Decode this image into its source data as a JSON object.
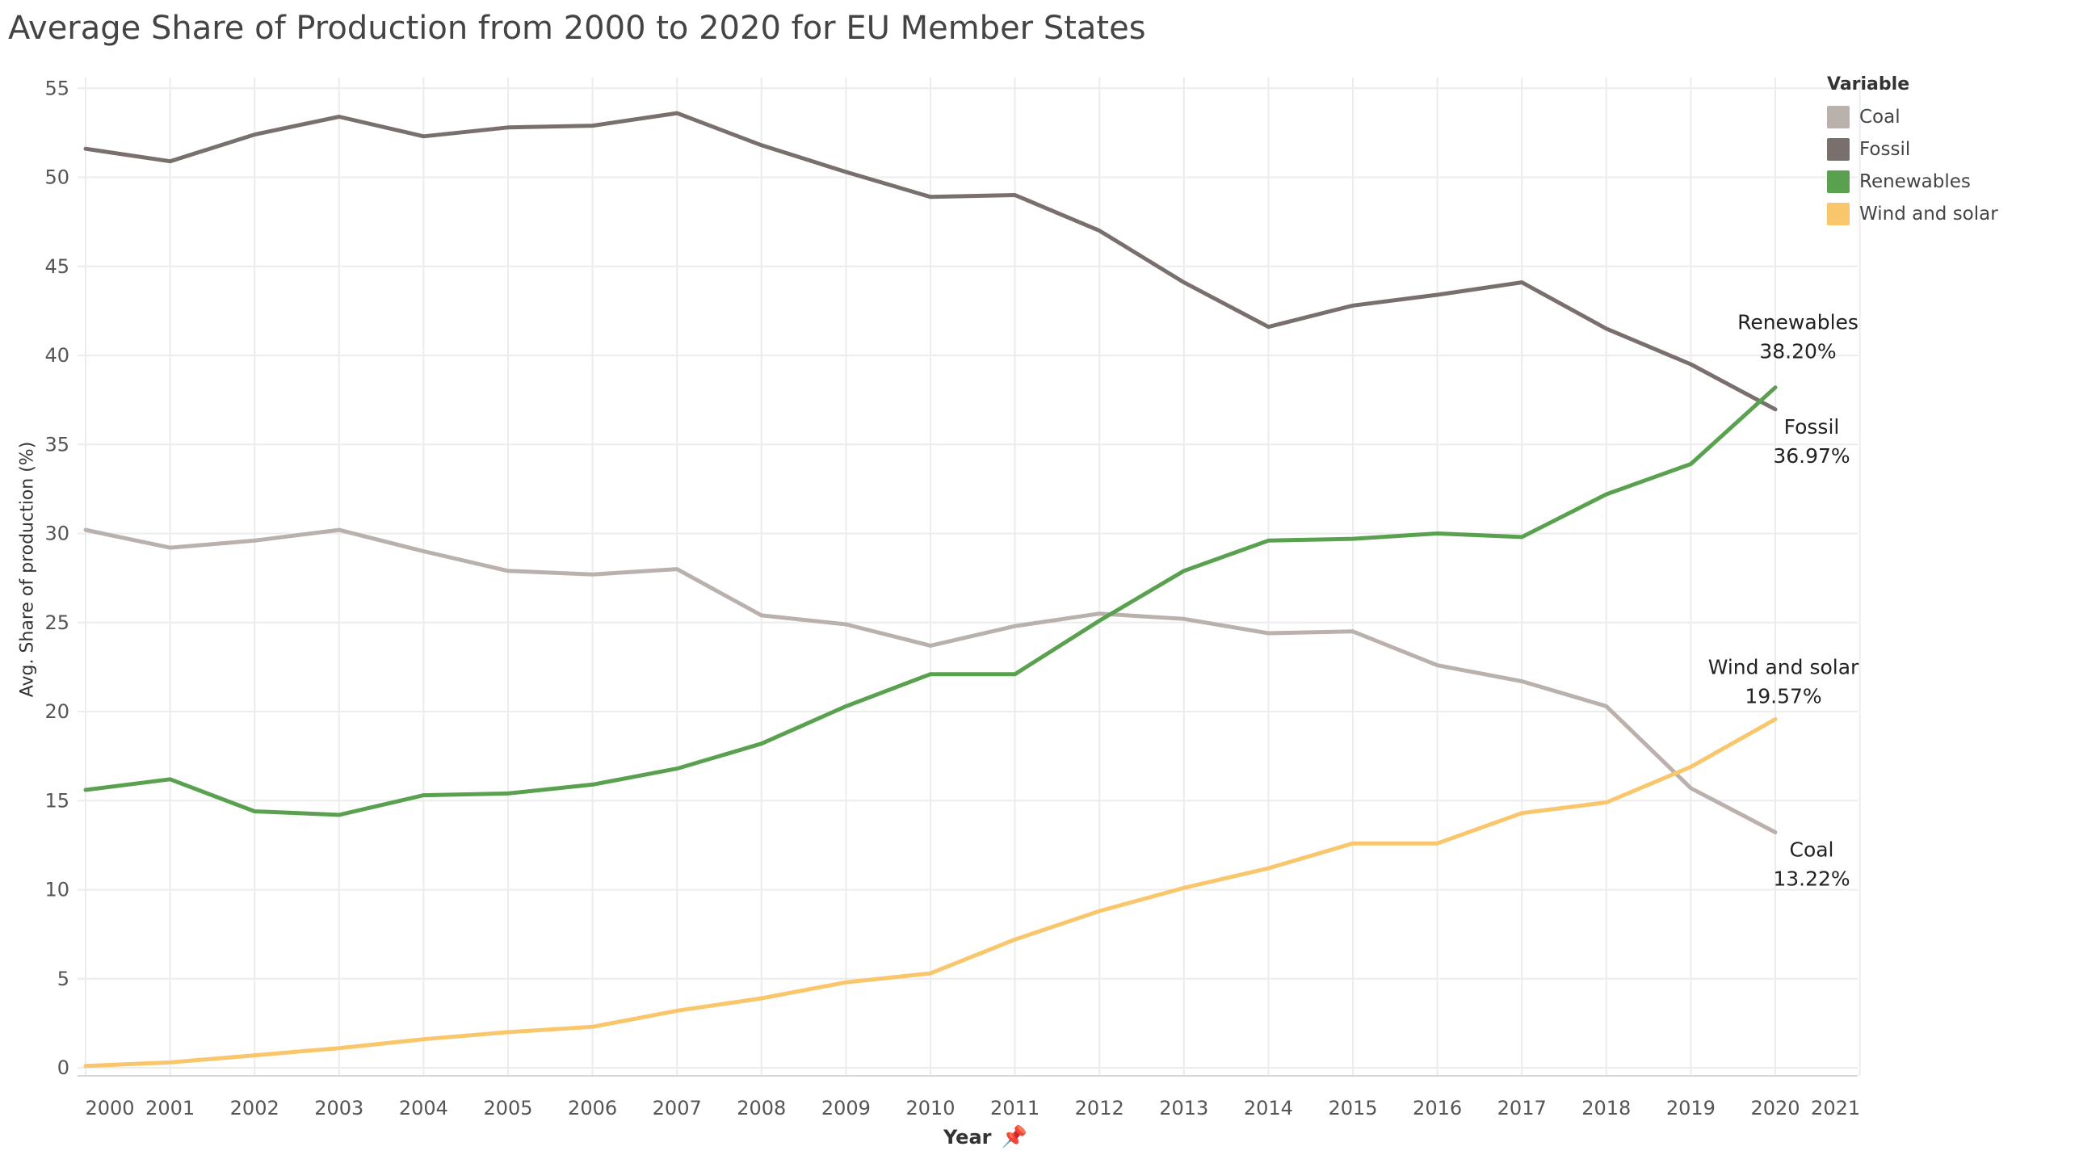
{
  "chart_data": {
    "type": "line",
    "title": "Average Share of Production from 2000 to 2020 for EU Member States",
    "xlabel": "Year",
    "ylabel": "Avg. Share of production (%)",
    "x_tick_labels": [
      "2000",
      "2001",
      "2002",
      "2003",
      "2004",
      "2005",
      "2006",
      "2007",
      "2008",
      "2009",
      "2010",
      "2011",
      "2012",
      "2013",
      "2014",
      "2015",
      "2016",
      "2017",
      "2018",
      "2019",
      "2020",
      "2021"
    ],
    "y_ticks": [
      0,
      5,
      10,
      15,
      20,
      25,
      30,
      35,
      40,
      45,
      50,
      55
    ],
    "xlim": [
      2000,
      2021
    ],
    "ylim": [
      0,
      55
    ],
    "grid": true,
    "legend": {
      "title": "Variable",
      "position": "top-right"
    },
    "x": [
      2000,
      2001,
      2002,
      2003,
      2004,
      2005,
      2006,
      2007,
      2008,
      2009,
      2010,
      2011,
      2012,
      2013,
      2014,
      2015,
      2016,
      2017,
      2018,
      2019,
      2020
    ],
    "series": [
      {
        "name": "Coal",
        "color": "#bab0ac",
        "values": [
          30.2,
          29.2,
          29.6,
          30.2,
          29.0,
          27.9,
          27.7,
          28.0,
          25.4,
          24.9,
          23.7,
          24.8,
          25.5,
          25.2,
          24.4,
          24.5,
          22.6,
          21.7,
          20.3,
          15.7,
          13.22
        ],
        "end_label": {
          "name": "Coal",
          "value": "13.22%"
        }
      },
      {
        "name": "Fossil",
        "color": "#79706e",
        "values": [
          51.6,
          50.9,
          52.4,
          53.4,
          52.3,
          52.8,
          52.9,
          53.6,
          51.8,
          50.3,
          48.9,
          49.0,
          47.0,
          44.1,
          41.6,
          42.8,
          43.4,
          44.1,
          41.5,
          39.5,
          36.97
        ],
        "end_label": {
          "name": "Fossil",
          "value": "36.97%"
        }
      },
      {
        "name": "Renewables",
        "color": "#59a14f",
        "values": [
          15.6,
          16.2,
          14.4,
          14.2,
          15.3,
          15.4,
          15.9,
          16.8,
          18.2,
          20.3,
          22.1,
          22.1,
          25.1,
          27.9,
          29.6,
          29.7,
          30.0,
          29.8,
          32.2,
          33.9,
          38.2
        ],
        "end_label": {
          "name": "Renewables",
          "value": "38.20%"
        }
      },
      {
        "name": "Wind and solar",
        "color": "#f9c66b",
        "values": [
          0.1,
          0.3,
          0.7,
          1.1,
          1.6,
          2.0,
          2.3,
          3.2,
          3.9,
          4.8,
          5.3,
          7.2,
          8.8,
          10.1,
          11.2,
          12.6,
          12.6,
          14.3,
          14.9,
          16.9,
          19.57
        ],
        "end_label": {
          "name": "Wind and solar",
          "value": "19.57%"
        }
      }
    ]
  }
}
